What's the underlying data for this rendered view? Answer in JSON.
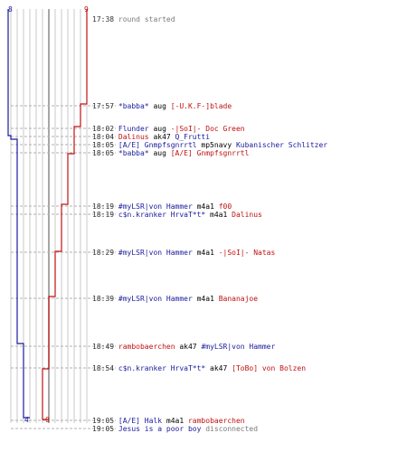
{
  "scores": {
    "blue_start": "8",
    "red_start": "9",
    "blue_end": "4",
    "red_end": "0"
  },
  "colors": {
    "blue": "#1a1a9e",
    "red": "#c01010",
    "grid": "#c8c8c8",
    "dashed": "#b0b0b0"
  },
  "events": [
    {
      "time": "17:38",
      "parts": [
        {
          "t": "round started",
          "c": "gray"
        }
      ]
    },
    {
      "time": "17:57",
      "parts": [
        {
          "t": "*babba*",
          "c": "blue"
        },
        {
          "t": " aug ",
          "c": "black"
        },
        {
          "t": "[-U.K.F-]blade",
          "c": "red"
        }
      ]
    },
    {
      "time": "18:02",
      "parts": [
        {
          "t": "Flunder",
          "c": "blue"
        },
        {
          "t": " aug ",
          "c": "black"
        },
        {
          "t": "-|SoI|- Doc Green",
          "c": "red"
        }
      ]
    },
    {
      "time": "18:04",
      "parts": [
        {
          "t": "Dalinus",
          "c": "red"
        },
        {
          "t": " ak47 ",
          "c": "black"
        },
        {
          "t": "Q_Frutti",
          "c": "blue"
        }
      ]
    },
    {
      "time": "18:05",
      "parts": [
        {
          "t": "[A/E] Gnmpfsgnrrtl",
          "c": "blue"
        },
        {
          "t": " mp5navy ",
          "c": "black"
        },
        {
          "t": "Kubanischer Schlitzer",
          "c": "blue"
        }
      ]
    },
    {
      "time": "18:05",
      "parts": [
        {
          "t": "*babba*",
          "c": "blue"
        },
        {
          "t": " aug ",
          "c": "black"
        },
        {
          "t": "[A/E] Gnmpfsgnrrtl",
          "c": "red"
        }
      ]
    },
    {
      "time": "18:19",
      "parts": [
        {
          "t": "#myLSR|von Hammer",
          "c": "blue"
        },
        {
          "t": " m4a1 ",
          "c": "black"
        },
        {
          "t": "f00",
          "c": "red"
        }
      ]
    },
    {
      "time": "18:19",
      "parts": [
        {
          "t": "c$n.kranker HrvaT*t*",
          "c": "blue"
        },
        {
          "t": " m4a1 ",
          "c": "black"
        },
        {
          "t": "Dalinus",
          "c": "red"
        }
      ]
    },
    {
      "time": "18:29",
      "parts": [
        {
          "t": "#myLSR|von Hammer",
          "c": "blue"
        },
        {
          "t": " m4a1 ",
          "c": "black"
        },
        {
          "t": "-|SoI|- Natas",
          "c": "red"
        }
      ]
    },
    {
      "time": "18:39",
      "parts": [
        {
          "t": "#myLSR|von Hammer",
          "c": "blue"
        },
        {
          "t": " m4a1 ",
          "c": "black"
        },
        {
          "t": "Bananajoe",
          "c": "red"
        }
      ]
    },
    {
      "time": "18:49",
      "parts": [
        {
          "t": "rambobaerchen",
          "c": "red"
        },
        {
          "t": " ak47 ",
          "c": "black"
        },
        {
          "t": "#myLSR|von Hammer",
          "c": "blue"
        }
      ]
    },
    {
      "time": "18:54",
      "parts": [
        {
          "t": "c$n.kranker HrvaT*t*",
          "c": "blue"
        },
        {
          "t": " ak47 ",
          "c": "black"
        },
        {
          "t": "[ToBo] von Bolzen",
          "c": "red"
        }
      ]
    },
    {
      "time": "19:05",
      "parts": [
        {
          "t": "[A/E] Halk",
          "c": "blue"
        },
        {
          "t": " m4a1 ",
          "c": "black"
        },
        {
          "t": "rambobaerchen",
          "c": "red"
        }
      ]
    },
    {
      "time": "19:05",
      "parts": [
        {
          "t": "Jesus is a poor boy",
          "c": "blue"
        },
        {
          "t": " disconnected",
          "c": "gray"
        }
      ]
    }
  ]
}
